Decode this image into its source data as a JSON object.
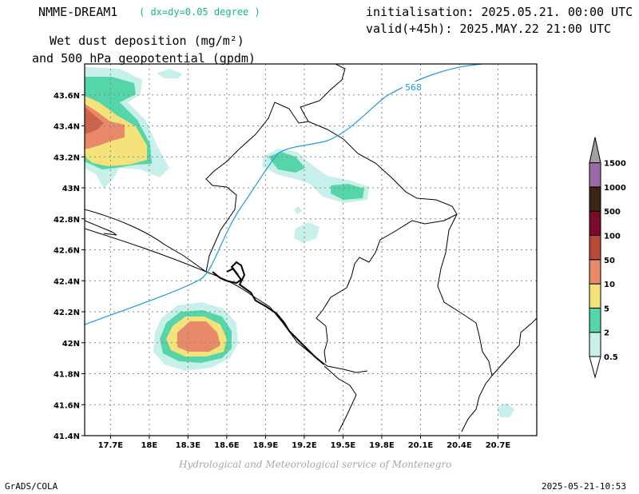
{
  "header": {
    "model": "NMME-DREAM1",
    "resolution": "( dx=dy=0.05 degree )",
    "initialisation": "initialisation: 2025.05.21. 00:00 UTC",
    "valid": "valid(+45h): 2025.MAY.22 21:00 UTC",
    "title_line1": "Wet dust deposition (mg/m²)",
    "title_line2": "and 500 hPa geopotential (gpdm)"
  },
  "footer": {
    "credit": "Hydrological and Meteorological service of Montenegro",
    "software": "GrADS/COLA",
    "timestamp": "2025-05-21-10:53"
  },
  "map": {
    "lon_range": [
      17.5,
      21.0
    ],
    "lat_range": [
      41.4,
      43.8
    ],
    "lat_ticks": [
      "41.4N",
      "41.6N",
      "41.8N",
      "42N",
      "42.2N",
      "42.4N",
      "42.6N",
      "42.8N",
      "43N",
      "43.2N",
      "43.4N",
      "43.6N"
    ],
    "lon_ticks": [
      "17.7E",
      "18E",
      "18.3E",
      "18.6E",
      "18.9E",
      "19.2E",
      "19.5E",
      "19.8E",
      "20.1E",
      "20.4E",
      "20.7E"
    ],
    "contour_label": "568",
    "colors": {
      "frame": "#000000",
      "grid": "#888888",
      "contour": "#1a9ce0"
    }
  },
  "legend": {
    "levels": [
      {
        "label": "1500",
        "color": "#9b6ba8"
      },
      {
        "label": "1000",
        "color": "#3b2514"
      },
      {
        "label": "500",
        "color": "#7a0a2a"
      },
      {
        "label": "100",
        "color": "#b84a3a"
      },
      {
        "label": "50",
        "color": "#e8896a"
      },
      {
        "label": "10",
        "color": "#f4e27a"
      },
      {
        "label": "5",
        "color": "#56d6a8"
      },
      {
        "label": "2",
        "color": "#c8f0ea"
      },
      {
        "label": "0.5",
        "color": "#ffffff"
      }
    ],
    "bar_colors_bottom_to_top": [
      "#c8f0ea",
      "#56d6a8",
      "#f4e27a",
      "#e8896a",
      "#b84a3a",
      "#7a0a2a",
      "#3b2514",
      "#9b6ba8"
    ],
    "top_arrow_color": "#a0a0a0"
  }
}
